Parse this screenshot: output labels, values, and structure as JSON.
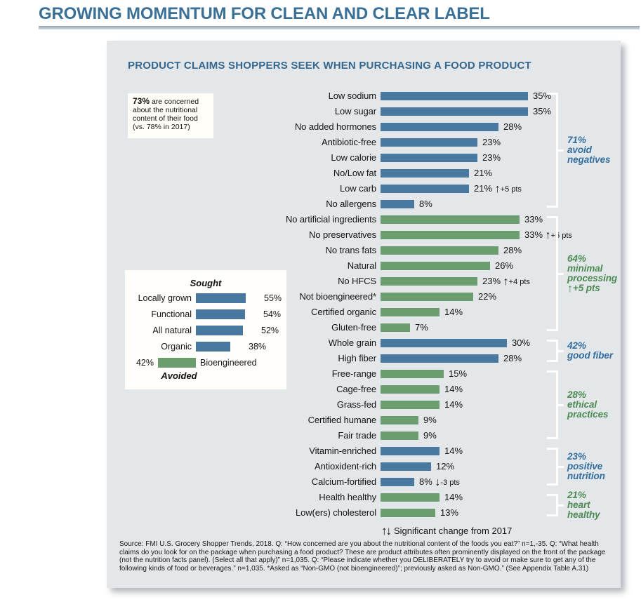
{
  "page": {
    "title": "GROWING MOMENTUM FOR CLEAN AND CLEAR LABEL"
  },
  "panel": {
    "heading": "PRODUCT CLAIMS SHOPPERS SEEK WHEN PURCHASING A FOOD PRODUCT",
    "note": {
      "stat": "73%",
      "rest": " are concerned about the nutritional content of their food (vs. 78% in 2017)"
    },
    "legend_arrows": "↑↓",
    "legend_text": "Significant change from 2017",
    "source_text": "Source: FMI U.S. Grocery Shopper Trends, 2018. Q: “How concerned are you about the nutritional content of the foods you eat?” n=1,-35. Q: “What health claims do you look for on the package when purchasing a food product? These are product attributes often prominently displayed on the front of the package (not the nutrition facts panel). (Select all that apply)” n=1,035. Q: “Please indicate whether you DELIBERATELY try to avoid or make sure to get any of the following kinds of food or beverages.” n=1,035. *Asked as “Non-GMO (not bioengineered)”; previously asked as Non-GMO.” (See Appendix Table A.31)"
  },
  "icons": {
    "arrow_up": "↑",
    "arrow_down": "↓"
  },
  "colors": {
    "blue": "#4878a0",
    "green": "#6b9d6f",
    "blue_text": "#336e9e",
    "green_text": "#4c8a52",
    "panel_bg": "#e3e7ea",
    "title": "#3a7096"
  },
  "chart_data": [
    {
      "type": "bar",
      "orientation": "horizontal",
      "title": "PRODUCT CLAIMS SHOPPERS SEEK WHEN PURCHASING A FOOD PRODUCT",
      "unit": "%",
      "xlim": [
        0,
        40
      ],
      "rows": [
        {
          "label": "Low sodium",
          "value": 35,
          "color": "blue"
        },
        {
          "label": "Low sugar",
          "value": 35,
          "color": "blue"
        },
        {
          "label": "No added hormones",
          "value": 28,
          "color": "blue"
        },
        {
          "label": "Antibiotic-free",
          "value": 23,
          "color": "blue"
        },
        {
          "label": "Low calorie",
          "value": 23,
          "color": "blue"
        },
        {
          "label": "No/Low fat",
          "value": 21,
          "color": "blue"
        },
        {
          "label": "Low carb",
          "value": 21,
          "color": "blue",
          "change": {
            "dir": "up",
            "text": "+5 pts"
          }
        },
        {
          "label": "No allergens",
          "value": 8,
          "color": "blue"
        },
        {
          "label": "No artificial ingredients",
          "value": 33,
          "color": "green"
        },
        {
          "label": "No preservatives",
          "value": 33,
          "color": "green",
          "change": {
            "dir": "up",
            "text": "+5 pts"
          }
        },
        {
          "label": "No trans fats",
          "value": 28,
          "color": "green"
        },
        {
          "label": "Natural",
          "value": 26,
          "color": "green"
        },
        {
          "label": "No HFCS",
          "value": 23,
          "color": "green",
          "change": {
            "dir": "up",
            "text": "+4 pts"
          }
        },
        {
          "label": "Not bioengineered*",
          "value": 22,
          "color": "green"
        },
        {
          "label": "Certified organic",
          "value": 14,
          "color": "green"
        },
        {
          "label": "Gluten-free",
          "value": 7,
          "color": "green"
        },
        {
          "label": "Whole grain",
          "value": 30,
          "color": "blue"
        },
        {
          "label": "High fiber",
          "value": 28,
          "color": "blue"
        },
        {
          "label": "Free-range",
          "value": 15,
          "color": "green"
        },
        {
          "label": "Cage-free",
          "value": 14,
          "color": "green"
        },
        {
          "label": "Grass-fed",
          "value": 14,
          "color": "green"
        },
        {
          "label": "Certified humane",
          "value": 9,
          "color": "green"
        },
        {
          "label": "Fair trade",
          "value": 9,
          "color": "green"
        },
        {
          "label": "Vitamin-enriched",
          "value": 14,
          "color": "blue"
        },
        {
          "label": "Antioxident-rich",
          "value": 12,
          "color": "blue"
        },
        {
          "label": "Calcium-fortified",
          "value": 8,
          "color": "blue",
          "change": {
            "dir": "down",
            "text": "-3 pts"
          }
        },
        {
          "label": "Health healthy",
          "value": 14,
          "color": "green"
        },
        {
          "label": "Low(ers) cholesterol",
          "value": 13,
          "color": "green"
        }
      ],
      "groups": [
        {
          "lines": [
            "71%",
            "avoid",
            "negatives"
          ],
          "color": "blue",
          "start": 0,
          "end": 7
        },
        {
          "lines": [
            "64%",
            "minimal",
            "processing"
          ],
          "color": "green",
          "start": 8,
          "end": 15,
          "change": {
            "dir": "up",
            "text": "+5 pts"
          }
        },
        {
          "lines": [
            "42%",
            "good fiber"
          ],
          "color": "blue",
          "start": 16,
          "end": 17
        },
        {
          "lines": [
            "28%",
            "ethical",
            "practices"
          ],
          "color": "green",
          "start": 18,
          "end": 22
        },
        {
          "lines": [
            "23%",
            "positive",
            "nutrition"
          ],
          "color": "blue",
          "start": 23,
          "end": 25
        },
        {
          "lines": [
            "21%",
            "heart",
            "healthy"
          ],
          "color": "green",
          "start": 26,
          "end": 27
        }
      ],
      "legend": "↑↓ Significant change from 2017"
    },
    {
      "type": "bar",
      "orientation": "horizontal",
      "title_top": "Sought",
      "title_bottom": "Avoided",
      "unit": "%",
      "sought": [
        {
          "label": "Locally grown",
          "value": 55
        },
        {
          "label": "Functional",
          "value": 54
        },
        {
          "label": "All natural",
          "value": 52
        },
        {
          "label": "Organic",
          "value": 38
        }
      ],
      "avoided": [
        {
          "label": "Bioengineered",
          "value": 42
        }
      ]
    }
  ]
}
